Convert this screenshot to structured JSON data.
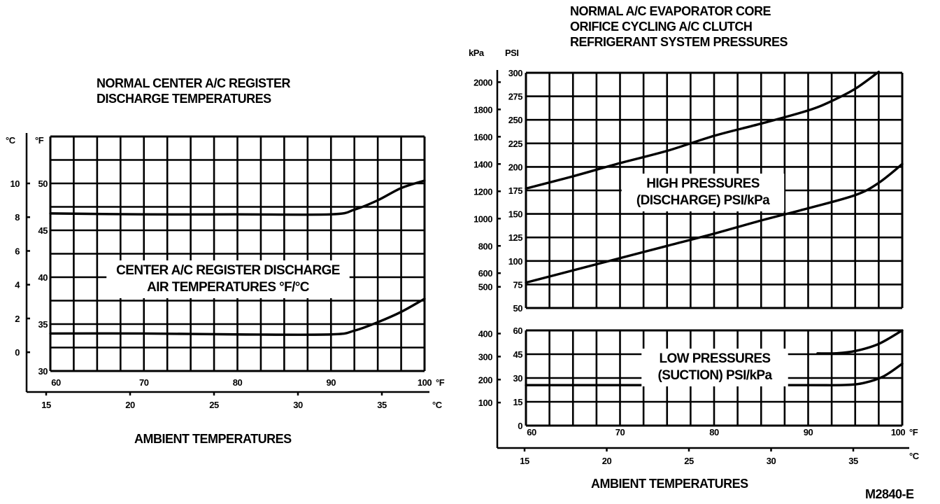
{
  "figure_id": "M2840-E",
  "chart_data": [
    {
      "type": "line",
      "title": [
        "NORMAL CENTER A/C REGISTER",
        "DISCHARGE TEMPERATURES"
      ],
      "inner_label": [
        "CENTER A/C REGISTER DISCHARGE",
        "AIR TEMPERATURES °F/°C"
      ],
      "xlabel": "AMBIENT TEMPERATURES",
      "x_unit": "°F",
      "x2_unit": "°C",
      "y_unit": "°F",
      "y2_unit": "°C",
      "xlim": [
        60,
        100
      ],
      "ylim": [
        30,
        55
      ],
      "x_ticks": [
        "60",
        "70",
        "80",
        "90",
        "100"
      ],
      "x2_ticks": [
        "15",
        "20",
        "25",
        "30",
        "35"
      ],
      "y_ticks": [
        "30",
        "35",
        "40",
        "45",
        "50"
      ],
      "y2_ticks": [
        "0",
        "2",
        "4",
        "6",
        "8",
        "10"
      ],
      "grid": true,
      "series": [
        {
          "name": "upper",
          "x": [
            60,
            70,
            80,
            90,
            92.5,
            95,
            97.5,
            100
          ],
          "y": [
            46.8,
            46.7,
            46.7,
            46.7,
            47.2,
            48.2,
            49.5,
            50.3
          ]
        },
        {
          "name": "lower",
          "x": [
            60,
            70,
            80,
            90,
            92.5,
            95,
            97.5,
            100
          ],
          "y": [
            34.0,
            34.0,
            33.9,
            33.9,
            34.3,
            35.2,
            36.3,
            37.7
          ]
        }
      ]
    },
    {
      "type": "line",
      "title": [
        "NORMAL A/C EVAPORATOR CORE",
        "ORIFICE CYCLING A/C CLUTCH",
        "REFRIGERANT SYSTEM PRESSURES"
      ],
      "xlabel": "AMBIENT TEMPERATURES",
      "y_unit": "PSI",
      "y2_unit": "kPa",
      "x_unit": "°F",
      "x2_unit": "°C",
      "xlim": [
        60,
        100
      ],
      "x_ticks": [
        "60",
        "70",
        "80",
        "90",
        "100"
      ],
      "x2_ticks": [
        "15",
        "20",
        "25",
        "30",
        "35"
      ],
      "grid": true,
      "panels": [
        {
          "name": "high",
          "inner_label": [
            "HIGH PRESSURES",
            "(DISCHARGE) PSI/kPa"
          ],
          "ylim": [
            50,
            300
          ],
          "y_ticks": [
            "50",
            "75",
            "100",
            "125",
            "150",
            "175",
            "200",
            "225",
            "250",
            "275",
            "300"
          ],
          "y2_ticks": [
            "500",
            "600",
            "800",
            "1000",
            "1200",
            "1400",
            "1600",
            "1800",
            "2000"
          ],
          "series": [
            {
              "name": "upper",
              "x": [
                60,
                65,
                70,
                75,
                80,
                85,
                90,
                92.5,
                95,
                97.5
              ],
              "y": [
                177,
                190,
                204,
                217,
                233,
                246,
                260,
                270,
                283,
                301
              ]
            },
            {
              "name": "lower",
              "x": [
                60,
                65,
                70,
                75,
                80,
                85,
                90,
                95,
                97.5,
                100
              ],
              "y": [
                77,
                90,
                103,
                116,
                129,
                143,
                156,
                170,
                183,
                203
              ]
            }
          ]
        },
        {
          "name": "low",
          "inner_label": [
            "LOW PRESSURES",
            "(SUCTION) PSI/kPa"
          ],
          "ylim": [
            0,
            60
          ],
          "y_ticks": [
            "0",
            "15",
            "30",
            "45",
            "60"
          ],
          "y2_ticks": [
            "100",
            "200",
            "300",
            "400"
          ],
          "series": [
            {
              "name": "upper",
              "x": [
                91,
                93,
                95,
                97.5,
                100
              ],
              "y": [
                45.5,
                45.6,
                47,
                51.5,
                60
              ]
            },
            {
              "name": "lower",
              "x": [
                60,
                70,
                80,
                90,
                94,
                96,
                98,
                100
              ],
              "y": [
                25.5,
                25.5,
                25.5,
                25.5,
                25.6,
                27,
                31,
                39
              ]
            }
          ]
        }
      ]
    }
  ]
}
